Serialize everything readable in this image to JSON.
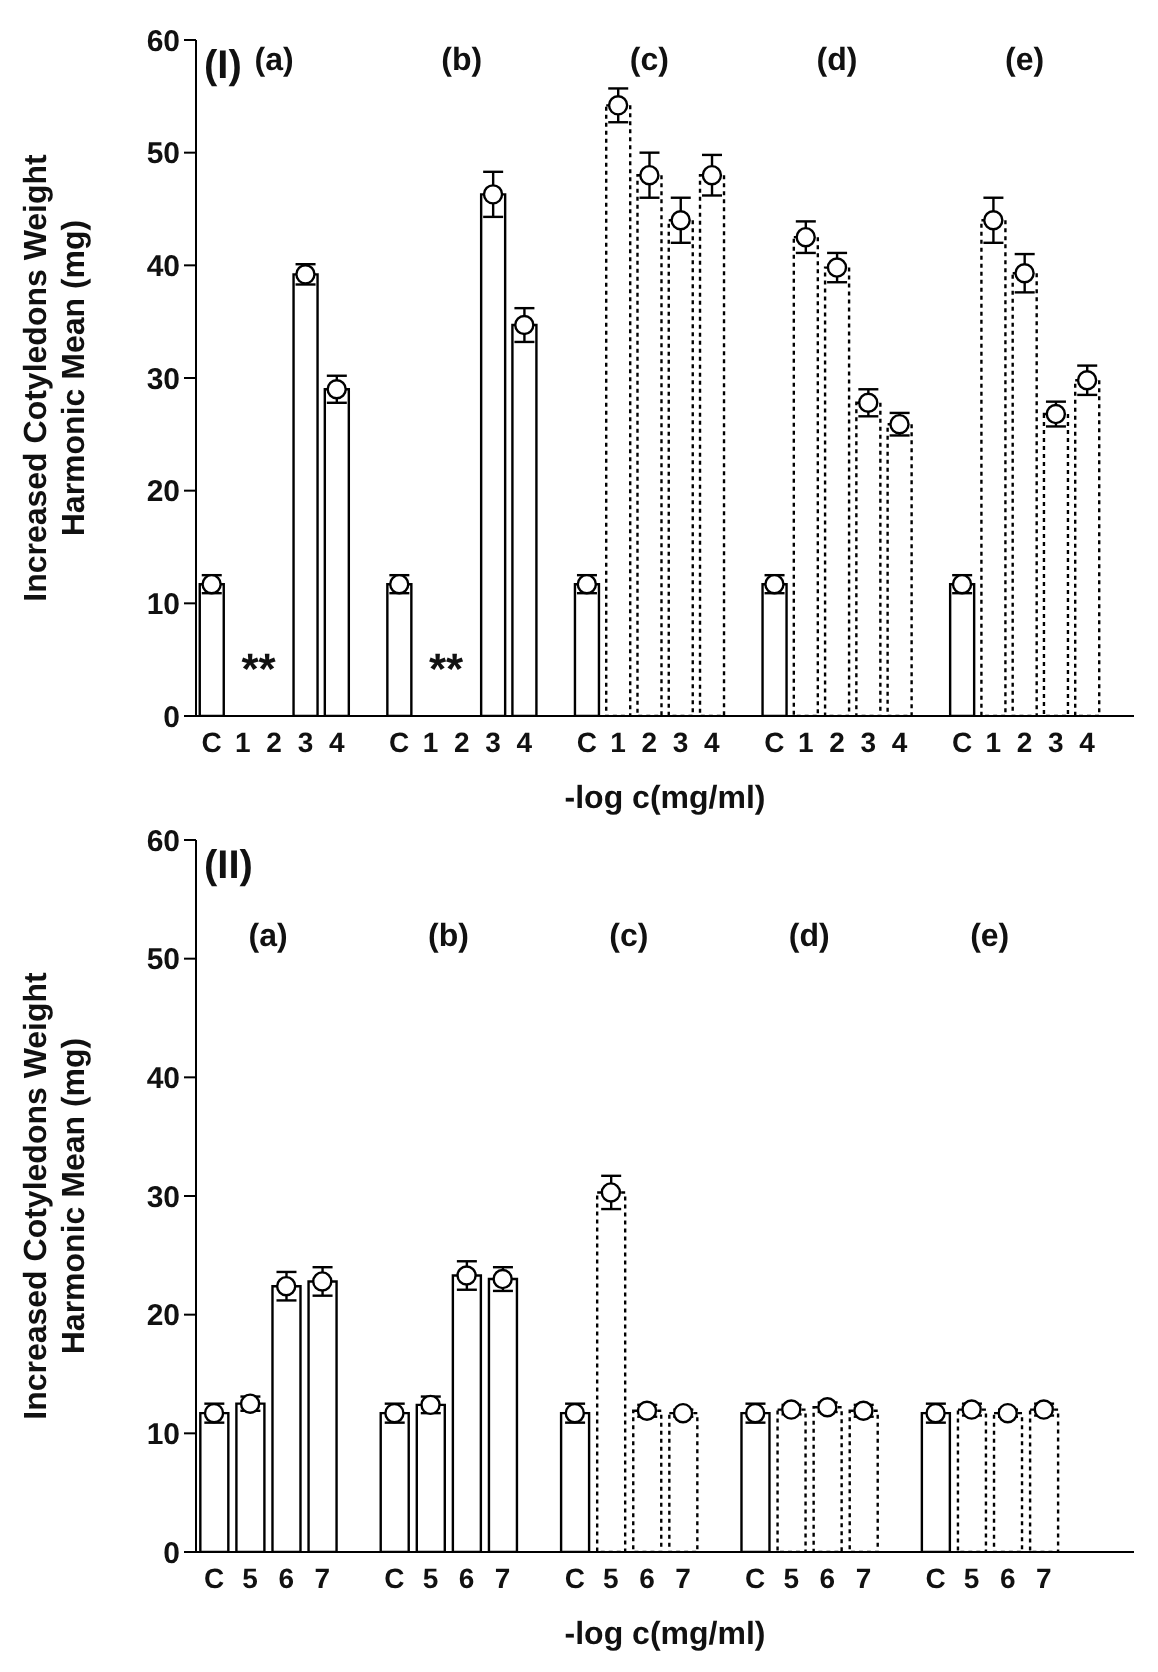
{
  "chart_data": [
    {
      "type": "bar",
      "xlabel": "-log c(mg/ml)",
      "ylabel": "Increased Cotyledons Weight\nHarmonic Mean (mg)",
      "marker": "circle",
      "categories": [
        "C",
        "1",
        "2",
        "3",
        "4",
        null,
        "C",
        "1",
        "2",
        "3",
        "4",
        null,
        "C",
        "1",
        "2",
        "3",
        "4",
        null,
        "C",
        "1",
        "2",
        "3",
        "4",
        null,
        "C",
        "1",
        "2",
        "3",
        "4",
        null
      ],
      "series": [
        {
          "type": "bar",
          "color": "#ffffff",
          "values": [
            11.7,
            null,
            null,
            39.2,
            29.0,
            null,
            11.7,
            null,
            null,
            46.3,
            34.7,
            null,
            11.7,
            54.2,
            48.0,
            44.0,
            48.0,
            null,
            11.7,
            42.5,
            39.8,
            27.8,
            25.9,
            null,
            11.7,
            44.0,
            39.3,
            26.8,
            29.8,
            null
          ],
          "errors": [
            0.8,
            null,
            null,
            0.9,
            1.2,
            null,
            0.8,
            null,
            null,
            2.0,
            1.5,
            null,
            0.8,
            1.5,
            2.0,
            2.0,
            1.8,
            null,
            0.8,
            1.4,
            1.3,
            1.2,
            1.0,
            null,
            0.8,
            2.0,
            1.7,
            1.1,
            1.3,
            null
          ]
        },
        {
          "type": "scatter",
          "color": "#ffffff",
          "values": [
            11.7,
            null,
            null,
            39.2,
            29.0,
            null,
            11.7,
            null,
            null,
            46.3,
            34.7,
            null,
            11.7,
            54.2,
            48.0,
            44.0,
            48.0,
            null,
            11.7,
            42.5,
            39.8,
            27.8,
            25.9,
            null,
            11.7,
            44.0,
            39.3,
            26.8,
            29.8,
            null
          ]
        }
      ],
      "ylim": [
        0,
        60
      ],
      "yticks": [
        0,
        10,
        20,
        30,
        40,
        50,
        60
      ],
      "annotations": [
        "(I)",
        "(a)",
        "(b)",
        "(c)",
        "(d)",
        "(e)",
        "**",
        "**"
      ]
    },
    {
      "type": "bar",
      "xlabel": "-log c(mg/ml)",
      "ylabel": "Increased Cotyledons Weight\nHarmonic Mean (mg)",
      "marker": "circle",
      "categories": [
        "C",
        "5",
        "6",
        "7",
        null,
        "C",
        "5",
        "6",
        "7",
        null,
        "C",
        "5",
        "6",
        "7",
        null,
        "C",
        "5",
        "6",
        "7",
        null,
        "C",
        "5",
        "6",
        "7",
        null,
        null
      ],
      "series": [
        {
          "type": "bar",
          "color": "#ffffff",
          "values": [
            11.7,
            12.5,
            22.4,
            22.8,
            null,
            11.7,
            12.4,
            23.3,
            23.0,
            null,
            11.7,
            30.3,
            11.9,
            11.7,
            null,
            11.7,
            12.0,
            12.2,
            11.9,
            null,
            11.7,
            12.0,
            11.7,
            12.0,
            null,
            null
          ],
          "errors": [
            0.8,
            0.6,
            1.2,
            1.2,
            null,
            0.8,
            0.7,
            1.2,
            1.0,
            null,
            0.8,
            1.4,
            0.5,
            0.3,
            null,
            0.8,
            0.4,
            0.4,
            0.5,
            null,
            0.8,
            0.5,
            0.3,
            0.5,
            null,
            null
          ]
        },
        {
          "type": "scatter",
          "color": "#ffffff",
          "values": [
            11.7,
            12.5,
            22.4,
            22.8,
            null,
            11.7,
            12.4,
            23.3,
            23.0,
            null,
            11.7,
            30.3,
            11.9,
            11.7,
            null,
            11.7,
            12.0,
            12.2,
            11.9,
            null,
            11.7,
            12.0,
            11.7,
            12.0,
            null,
            null
          ]
        }
      ],
      "ylim": [
        0,
        60
      ],
      "yticks": [
        0,
        10,
        20,
        30,
        40,
        50,
        60
      ],
      "annotations": [
        "(II)",
        "(a)",
        "(b)",
        "(c)",
        "(d)",
        "(e)"
      ]
    }
  ]
}
